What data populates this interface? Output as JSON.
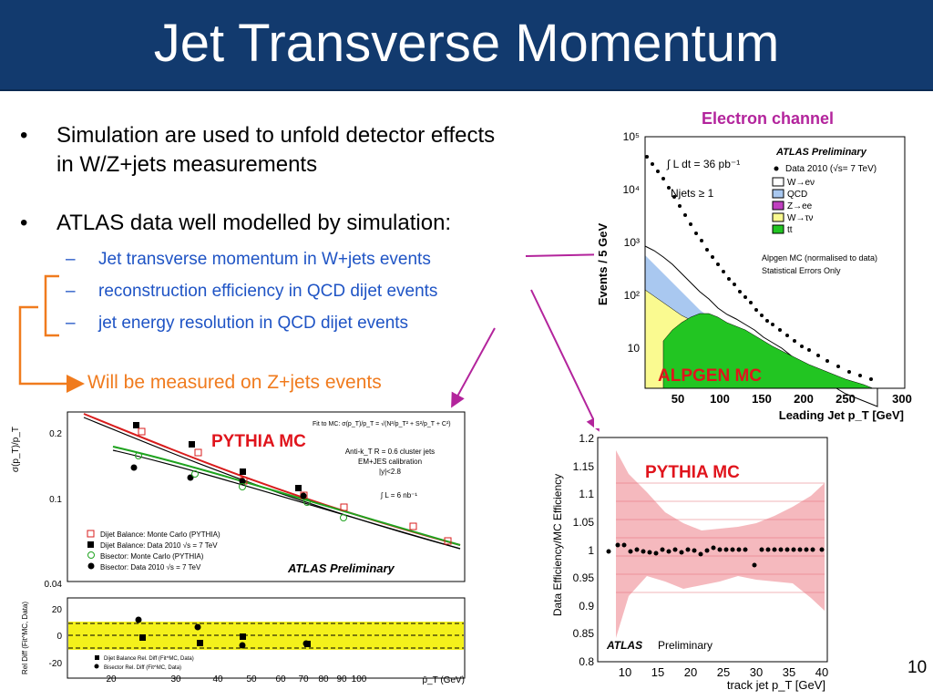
{
  "slide": {
    "title": "Jet Transverse Momentum",
    "page_number": "10",
    "colors": {
      "header_bg": "#123a6e",
      "subbullet": "#1f54c5",
      "orange": "#f07b1e",
      "magenta": "#b3249c",
      "red_label": "#e0141c"
    }
  },
  "bullets": [
    {
      "text": "Simulation are used to unfold detector effects in W/Z+jets measurements"
    },
    {
      "text": "ATLAS data well modelled by simulation:"
    }
  ],
  "subbullets": [
    {
      "text": "Jet transverse momentum in W+jets events"
    },
    {
      "text": "reconstruction efficiency in QCD dijet events"
    },
    {
      "text": "jet energy resolution in QCD dijet events"
    }
  ],
  "annotations": {
    "orange_note": "Will be measured on Z+jets events",
    "electron_channel": "Electron channel",
    "alpgen_mc": "ALPGEN MC",
    "pythia_left": "PYTHIA MC",
    "pythia_right": "PYTHIA MC"
  },
  "top_plot": {
    "ylabel": "Events / 5 GeV",
    "xlabel": "Leading Jet p_T [GeV]",
    "x_ticks": [
      "50",
      "100",
      "150",
      "200",
      "250",
      "300"
    ],
    "y_ticks": [
      "10",
      "10²",
      "10³",
      "10⁴",
      "10⁵"
    ],
    "lumi": "∫ L dt = 36 pb⁻¹",
    "njets": "Njets ≥ 1",
    "atlas": "ATLAS Preliminary",
    "note1": "Alpgen MC (normalised to data)",
    "note2": "Statistical Errors Only",
    "legend": [
      "Data 2010 (√s= 7 TeV)",
      "W→eν",
      "QCD",
      "Z→ee",
      "W→τν",
      "tt"
    ]
  },
  "left_plot": {
    "ylabel": "σ(p_T)/p_T",
    "fit_text": "Fit to MC: σ(p_T)/p_T = √(N²/p_T² + S²/p_T + C²)",
    "info": [
      "Anti-k_T R = 0.6 cluster jets",
      "EM+JES calibration",
      "|y|<2.8",
      "∫ L = 6 nb⁻¹"
    ],
    "y_ticks": [
      "0.2",
      "0.1",
      "0.04"
    ],
    "legend": [
      "Dijet Balance: Monte Carlo (PYTHIA)",
      "Dijet Balance: Data 2010  √s = 7 TeV",
      "Bisector: Monte Carlo (PYTHIA)",
      "Bisector: Data 2010  √s = 7 TeV"
    ],
    "atlas": "ATLAS Preliminary",
    "ratio_ylabel": "Rel Diff (Fit^MC, Data)",
    "ratio_yticks": [
      "20",
      "0",
      "-20"
    ],
    "ratio_legend": [
      "Dijet Balance Rel. Diff (Fit^MC, Data)",
      "Bisector Rel. Diff (Fit^MC, Data)"
    ],
    "x_ticks": [
      "20",
      "30",
      "40",
      "50",
      "60",
      "70",
      "80",
      "90",
      "100"
    ],
    "xlabel": "p̄_T (GeV)"
  },
  "right_plot": {
    "ylabel": "Data Efficiency/MC Efficiency",
    "xlabel": "track jet p_T [GeV]",
    "y_ticks": [
      "1.2",
      "1.15",
      "1.1",
      "1.05",
      "1",
      "0.95",
      "0.9",
      "0.85",
      "0.8"
    ],
    "x_ticks": [
      "10",
      "15",
      "20",
      "25",
      "30",
      "35",
      "40"
    ],
    "atlas": "ATLAS",
    "preliminary": "Preliminary"
  }
}
